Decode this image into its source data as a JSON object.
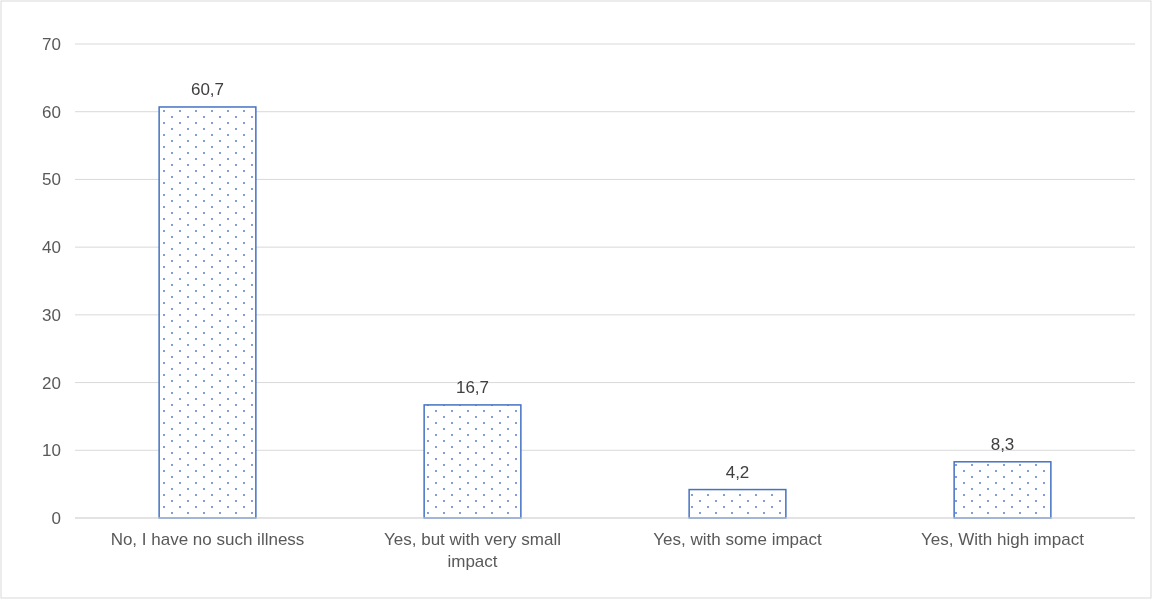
{
  "chart_data": {
    "type": "bar",
    "categories": [
      "No, I have no such illness",
      "Yes, but with very small impact",
      "Yes, with some impact",
      "Yes, With high impact"
    ],
    "values": [
      60.7,
      16.7,
      4.2,
      8.3
    ],
    "value_labels": [
      "60,7",
      "16,7",
      "4,2",
      "8,3"
    ],
    "color": "#4472c4",
    "ylim": [
      0,
      70
    ],
    "yticks": [
      0,
      10,
      20,
      30,
      40,
      50,
      60,
      70
    ],
    "grid": "y"
  }
}
